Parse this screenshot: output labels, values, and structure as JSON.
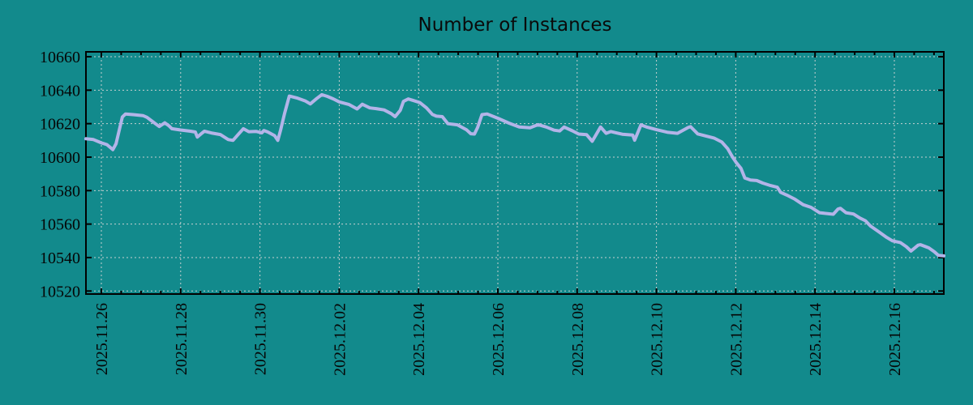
{
  "title": "Number of Instances",
  "colors": {
    "background": "#128a8c",
    "line": "#b3b4e8",
    "grid": "#c6d0d0",
    "axis": "#000000",
    "text": "#050505"
  },
  "chart_data": {
    "type": "line",
    "title": "Number of Instances",
    "xlabel": "",
    "ylabel": "",
    "grid": true,
    "legend": "none",
    "x_unit": "days since 2025.11.26",
    "x_tick_labels": [
      "2025.11.26",
      "2025.11.28",
      "2025.11.30",
      "2025.12.02",
      "2025.12.04",
      "2025.12.06",
      "2025.12.08",
      "2025.12.10",
      "2025.12.12",
      "2025.12.14",
      "2025.12.16"
    ],
    "x_tick_days": [
      0,
      2,
      4,
      6,
      8,
      10,
      12,
      14,
      16,
      18,
      20
    ],
    "x_minor_step_days": 0.5,
    "xlim_days": [
      -0.39,
      21.25
    ],
    "y_ticks": [
      10520,
      10540,
      10560,
      10580,
      10600,
      10620,
      10640,
      10660
    ],
    "ylim": [
      10518,
      10663
    ],
    "series": [
      {
        "name": "instances",
        "color": "#b3b4e8",
        "points": [
          [
            -0.39,
            10611
          ],
          [
            -0.2,
            10610.5
          ],
          [
            0,
            10608.5
          ],
          [
            0.14,
            10607.5
          ],
          [
            0.29,
            10604.5
          ],
          [
            0.37,
            10608
          ],
          [
            0.45,
            10616
          ],
          [
            0.53,
            10624
          ],
          [
            0.61,
            10625.8
          ],
          [
            0.8,
            10625.4
          ],
          [
            1.05,
            10624.8
          ],
          [
            1.15,
            10623.8
          ],
          [
            1.28,
            10621.5
          ],
          [
            1.39,
            10619.5
          ],
          [
            1.46,
            10618.3
          ],
          [
            1.6,
            10620.5
          ],
          [
            1.7,
            10618.8
          ],
          [
            1.78,
            10617
          ],
          [
            2,
            10616.2
          ],
          [
            2.25,
            10615.5
          ],
          [
            2.37,
            10615
          ],
          [
            2.42,
            10612
          ],
          [
            2.52,
            10614
          ],
          [
            2.6,
            10615.5
          ],
          [
            2.8,
            10614.3
          ],
          [
            3,
            10613.5
          ],
          [
            3.2,
            10610.5
          ],
          [
            3.32,
            10610
          ],
          [
            3.45,
            10613.5
          ],
          [
            3.58,
            10617
          ],
          [
            3.72,
            10615.2
          ],
          [
            3.9,
            10615.4
          ],
          [
            4.05,
            10614.5
          ],
          [
            4.1,
            10615.9
          ],
          [
            4.2,
            10615
          ],
          [
            4.37,
            10612.8
          ],
          [
            4.45,
            10610
          ],
          [
            4.52,
            10616
          ],
          [
            4.62,
            10626
          ],
          [
            4.74,
            10636.5
          ],
          [
            4.95,
            10635.2
          ],
          [
            5.15,
            10633.5
          ],
          [
            5.27,
            10631.8
          ],
          [
            5.43,
            10635
          ],
          [
            5.56,
            10637.3
          ],
          [
            5.7,
            10636.3
          ],
          [
            5.85,
            10634.8
          ],
          [
            6,
            10633
          ],
          [
            6.25,
            10631.4
          ],
          [
            6.45,
            10628.8
          ],
          [
            6.58,
            10631.6
          ],
          [
            6.77,
            10629.4
          ],
          [
            6.93,
            10629
          ],
          [
            7.13,
            10628.2
          ],
          [
            7.31,
            10626
          ],
          [
            7.41,
            10624.2
          ],
          [
            7.54,
            10628
          ],
          [
            7.62,
            10633.3
          ],
          [
            7.74,
            10634.8
          ],
          [
            8.03,
            10632.6
          ],
          [
            8.2,
            10629.4
          ],
          [
            8.35,
            10625.5
          ],
          [
            8.45,
            10624.5
          ],
          [
            8.6,
            10624.2
          ],
          [
            8.74,
            10620
          ],
          [
            8.98,
            10619.3
          ],
          [
            9.21,
            10616.3
          ],
          [
            9.32,
            10614
          ],
          [
            9.41,
            10613.8
          ],
          [
            9.49,
            10617.8
          ],
          [
            9.6,
            10625.4
          ],
          [
            9.73,
            10625.8
          ],
          [
            10,
            10623.2
          ],
          [
            10.28,
            10620.3
          ],
          [
            10.54,
            10618
          ],
          [
            10.81,
            10617.5
          ],
          [
            10.92,
            10618.6
          ],
          [
            11.02,
            10619.4
          ],
          [
            11.22,
            10618
          ],
          [
            11.42,
            10616.1
          ],
          [
            11.56,
            10615.6
          ],
          [
            11.67,
            10618
          ],
          [
            11.88,
            10615.7
          ],
          [
            12.04,
            10613.8
          ],
          [
            12.24,
            10613.4
          ],
          [
            12.38,
            10609.5
          ],
          [
            12.59,
            10618
          ],
          [
            12.73,
            10614.2
          ],
          [
            12.85,
            10615.3
          ],
          [
            13.14,
            10613.7
          ],
          [
            13.4,
            10613.2
          ],
          [
            13.45,
            10610.1
          ],
          [
            13.61,
            10619.3
          ],
          [
            13.75,
            10618
          ],
          [
            14.02,
            10616.3
          ],
          [
            14.29,
            10614.8
          ],
          [
            14.53,
            10614.2
          ],
          [
            14.8,
            10617.7
          ],
          [
            14.86,
            10618.2
          ],
          [
            15.04,
            10613.9
          ],
          [
            15.25,
            10612.6
          ],
          [
            15.45,
            10611.4
          ],
          [
            15.65,
            10609
          ],
          [
            15.8,
            10605
          ],
          [
            15.92,
            10600
          ],
          [
            16.02,
            10596.5
          ],
          [
            16.13,
            10593.3
          ],
          [
            16.23,
            10587.5
          ],
          [
            16.37,
            10586.3
          ],
          [
            16.53,
            10586
          ],
          [
            16.68,
            10584.5
          ],
          [
            16.88,
            10583
          ],
          [
            17.05,
            10582
          ],
          [
            17.13,
            10579
          ],
          [
            17.29,
            10577.3
          ],
          [
            17.49,
            10574.9
          ],
          [
            17.7,
            10571.6
          ],
          [
            17.9,
            10570
          ],
          [
            18.11,
            10566.8
          ],
          [
            18.46,
            10565.9
          ],
          [
            18.58,
            10569
          ],
          [
            18.64,
            10569.4
          ],
          [
            18.78,
            10566.8
          ],
          [
            18.97,
            10566
          ],
          [
            19.13,
            10563.6
          ],
          [
            19.27,
            10562
          ],
          [
            19.4,
            10558.8
          ],
          [
            19.6,
            10555.5
          ],
          [
            19.81,
            10552
          ],
          [
            19.95,
            10550
          ],
          [
            20.15,
            10549
          ],
          [
            20.3,
            10546.5
          ],
          [
            20.42,
            10543.9
          ],
          [
            20.6,
            10547.4
          ],
          [
            20.66,
            10547.7
          ],
          [
            20.87,
            10545.8
          ],
          [
            21.01,
            10543.4
          ],
          [
            21.11,
            10541.3
          ],
          [
            21.25,
            10541
          ]
        ]
      }
    ]
  }
}
